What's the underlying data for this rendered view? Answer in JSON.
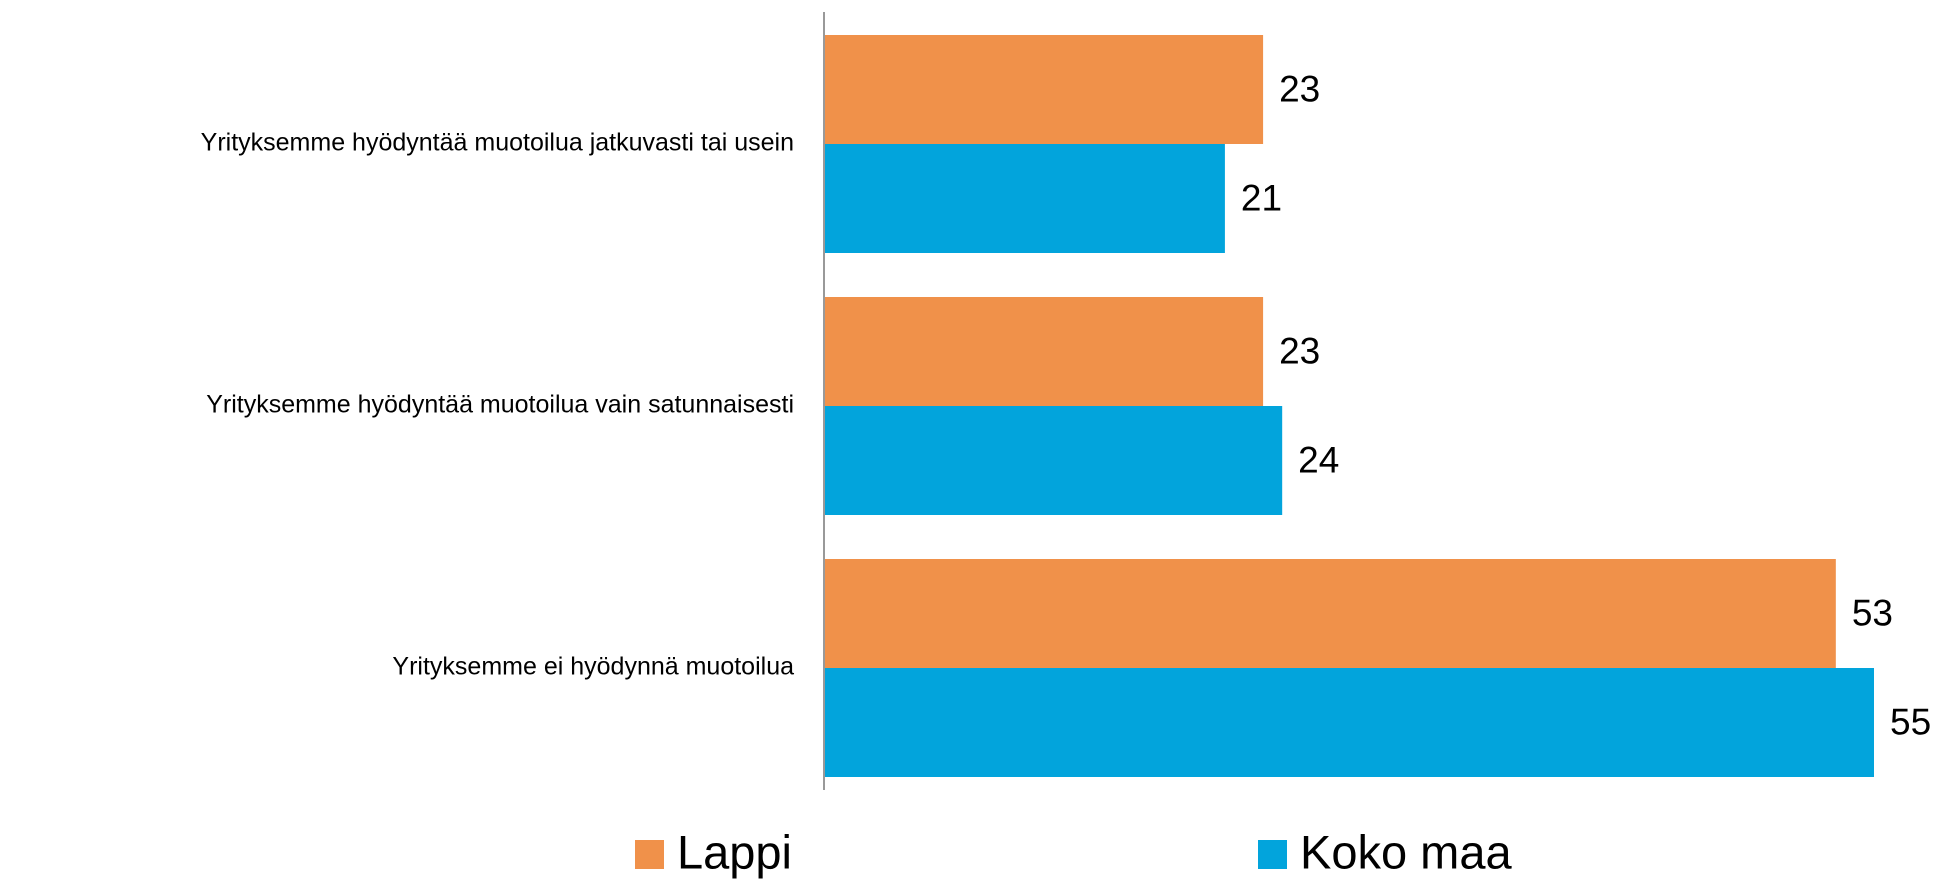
{
  "chart_data": {
    "type": "bar",
    "orientation": "horizontal",
    "categories": [
      "Yrityksemme hyödyntää muotoilua jatkuvasti tai usein",
      "Yrityksemme hyödyntää muotoilua vain satunnaisesti",
      "Yrityksemme ei hyödynnä muotoilua"
    ],
    "series": [
      {
        "name": "Lappi",
        "color": "#f0914a",
        "values": [
          23,
          23,
          53
        ]
      },
      {
        "name": "Koko maa",
        "color": "#02a4dc",
        "values": [
          21,
          24,
          55
        ]
      }
    ],
    "legend": "bottom"
  }
}
